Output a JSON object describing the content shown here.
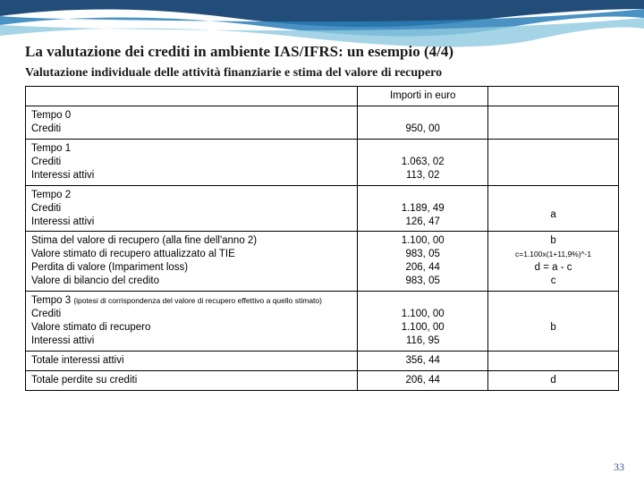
{
  "title": "La valutazione dei crediti in ambiente IAS/IFRS: un esempio (4/4)",
  "subtitle": "Valutazione individuale delle attività finanziarie e stima del valore di recupero",
  "header": {
    "col2": "Importi in euro",
    "col3": ""
  },
  "rows": [
    {
      "col1": "Tempo 0\nCrediti",
      "col2": "\n950, 00",
      "col3": ""
    },
    {
      "col1": "Tempo 1\nCrediti\nInteressi attivi",
      "col2": "\n1.063, 02\n113, 02",
      "col3": ""
    },
    {
      "col1": "Tempo 2\nCrediti\nInteressi attivi",
      "col2": "\n1.189, 49\n126, 47",
      "col3": "\na"
    },
    {
      "col1": "Stima del valore di recupero (alla fine dell'anno 2)\nValore stimato di recupero attualizzato al TIE\nPerdita di valore (Impariment loss)\nValore di bilancio del credito",
      "col2": "1.100, 00\n983, 05\n206, 44\n983, 05",
      "col3": "b\nc=1.100x(1+11,9%)^-1\nd = a - c\nc"
    },
    {
      "col1": "Tempo 3 (ipotesi di corrispondenza del valore di recupero effettivo a quello stimato)\nCrediti\nValore stimato di recupero\nInteressi attivi",
      "col2": "\n1.100, 00\n1.100, 00\n116, 95",
      "col3": "\nb"
    },
    {
      "col1": "Totale interessi attivi",
      "col2": "356, 44",
      "col3": ""
    },
    {
      "col1": "Totale perdite su crediti",
      "col2": "206, 44",
      "col3": "d"
    }
  ],
  "page_number": "33",
  "wave_colors": {
    "dark": "#0a3a6a",
    "mid": "#2a7fb8",
    "light": "#8ec9e0"
  }
}
